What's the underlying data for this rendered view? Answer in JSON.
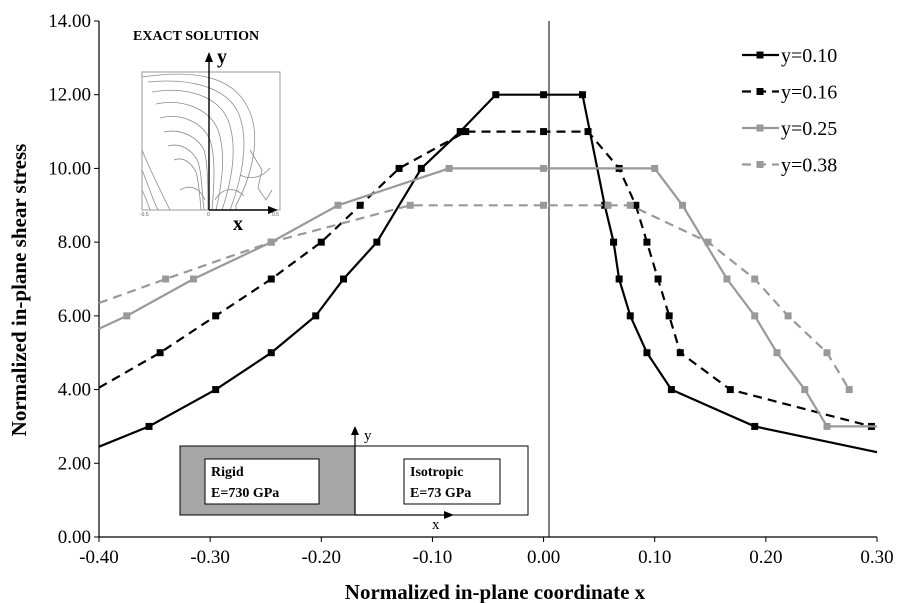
{
  "chart_data": {
    "type": "line",
    "xlabel": "Normalized in-plane coordinate x",
    "ylabel": "Normalized in-plane shear stress",
    "xlim": [
      -0.4,
      0.3
    ],
    "ylim": [
      0.0,
      14.0
    ],
    "x_ticks": [
      "-0.40",
      "-0.30",
      "-0.20",
      "-0.10",
      "0.00",
      "0.10",
      "0.20",
      "0.30"
    ],
    "y_ticks": [
      "0.00",
      "2.00",
      "4.00",
      "6.00",
      "8.00",
      "10.00",
      "12.00",
      "14.00"
    ],
    "grid": false,
    "legend_position": "top-right",
    "series": [
      {
        "name": "y=0.10",
        "color": "#000000",
        "dash": "solid",
        "marker_color": "#000000",
        "x": [
          -0.4,
          -0.355,
          -0.295,
          -0.245,
          -0.205,
          -0.18,
          -0.15,
          -0.11,
          -0.075,
          -0.043,
          0.0,
          0.035,
          0.055,
          0.063,
          0.068,
          0.078,
          0.093,
          0.115,
          0.19,
          0.3
        ],
        "y": [
          2.45,
          3.0,
          4.0,
          5.0,
          6.0,
          7.0,
          8.0,
          10.0,
          11.0,
          12.0,
          12.0,
          12.0,
          9.0,
          8.0,
          7.0,
          6.0,
          5.0,
          4.0,
          3.0,
          2.3
        ]
      },
      {
        "name": "y=0.16",
        "color": "#000000",
        "dash": "dashed",
        "marker_color": "#000000",
        "x": [
          -0.4,
          -0.345,
          -0.295,
          -0.245,
          -0.2,
          -0.165,
          -0.13,
          -0.07,
          0.0,
          0.04,
          0.068,
          0.083,
          0.093,
          0.103,
          0.113,
          0.123,
          0.168,
          0.295
        ],
        "y": [
          4.05,
          5.0,
          6.0,
          7.0,
          8.0,
          9.0,
          10.0,
          11.0,
          11.0,
          11.0,
          10.0,
          9.0,
          8.0,
          7.0,
          6.0,
          5.0,
          4.0,
          3.0
        ]
      },
      {
        "name": "y=0.25",
        "color": "#999999",
        "dash": "solid",
        "marker_color": "#999999",
        "x": [
          -0.4,
          -0.375,
          -0.315,
          -0.245,
          -0.185,
          -0.085,
          0.0,
          0.1,
          0.125,
          0.165,
          0.19,
          0.21,
          0.235,
          0.255,
          0.3
        ],
        "y": [
          5.65,
          6.0,
          7.0,
          8.0,
          9.0,
          10.0,
          10.0,
          10.0,
          9.0,
          7.0,
          6.0,
          5.0,
          4.0,
          3.0,
          3.0
        ]
      },
      {
        "name": "y=0.38",
        "color": "#999999",
        "dash": "dashed",
        "marker_color": "#999999",
        "x": [
          -0.4,
          -0.34,
          -0.245,
          -0.12,
          0.0,
          0.058,
          0.078,
          0.148,
          0.19,
          0.22,
          0.255,
          0.275
        ],
        "y": [
          6.35,
          7.0,
          8.0,
          9.0,
          9.0,
          9.0,
          9.0,
          8.0,
          7.0,
          6.0,
          5.0,
          4.0
        ]
      }
    ],
    "inset_contour": {
      "title": "EXACT SOLUTION",
      "y_axis_label": "y",
      "x_axis_label": "x",
      "tick_left": "-0.5",
      "tick_center": "0",
      "tick_right": "0.5"
    },
    "inset_material": {
      "left_label": "Rigid",
      "left_modulus": "E=730 GPa",
      "right_label": "Isotropic",
      "right_modulus": "E=73 GPa",
      "y_axis_label": "y",
      "x_axis_label": "x",
      "left_fill": "#a6a6a6"
    }
  }
}
